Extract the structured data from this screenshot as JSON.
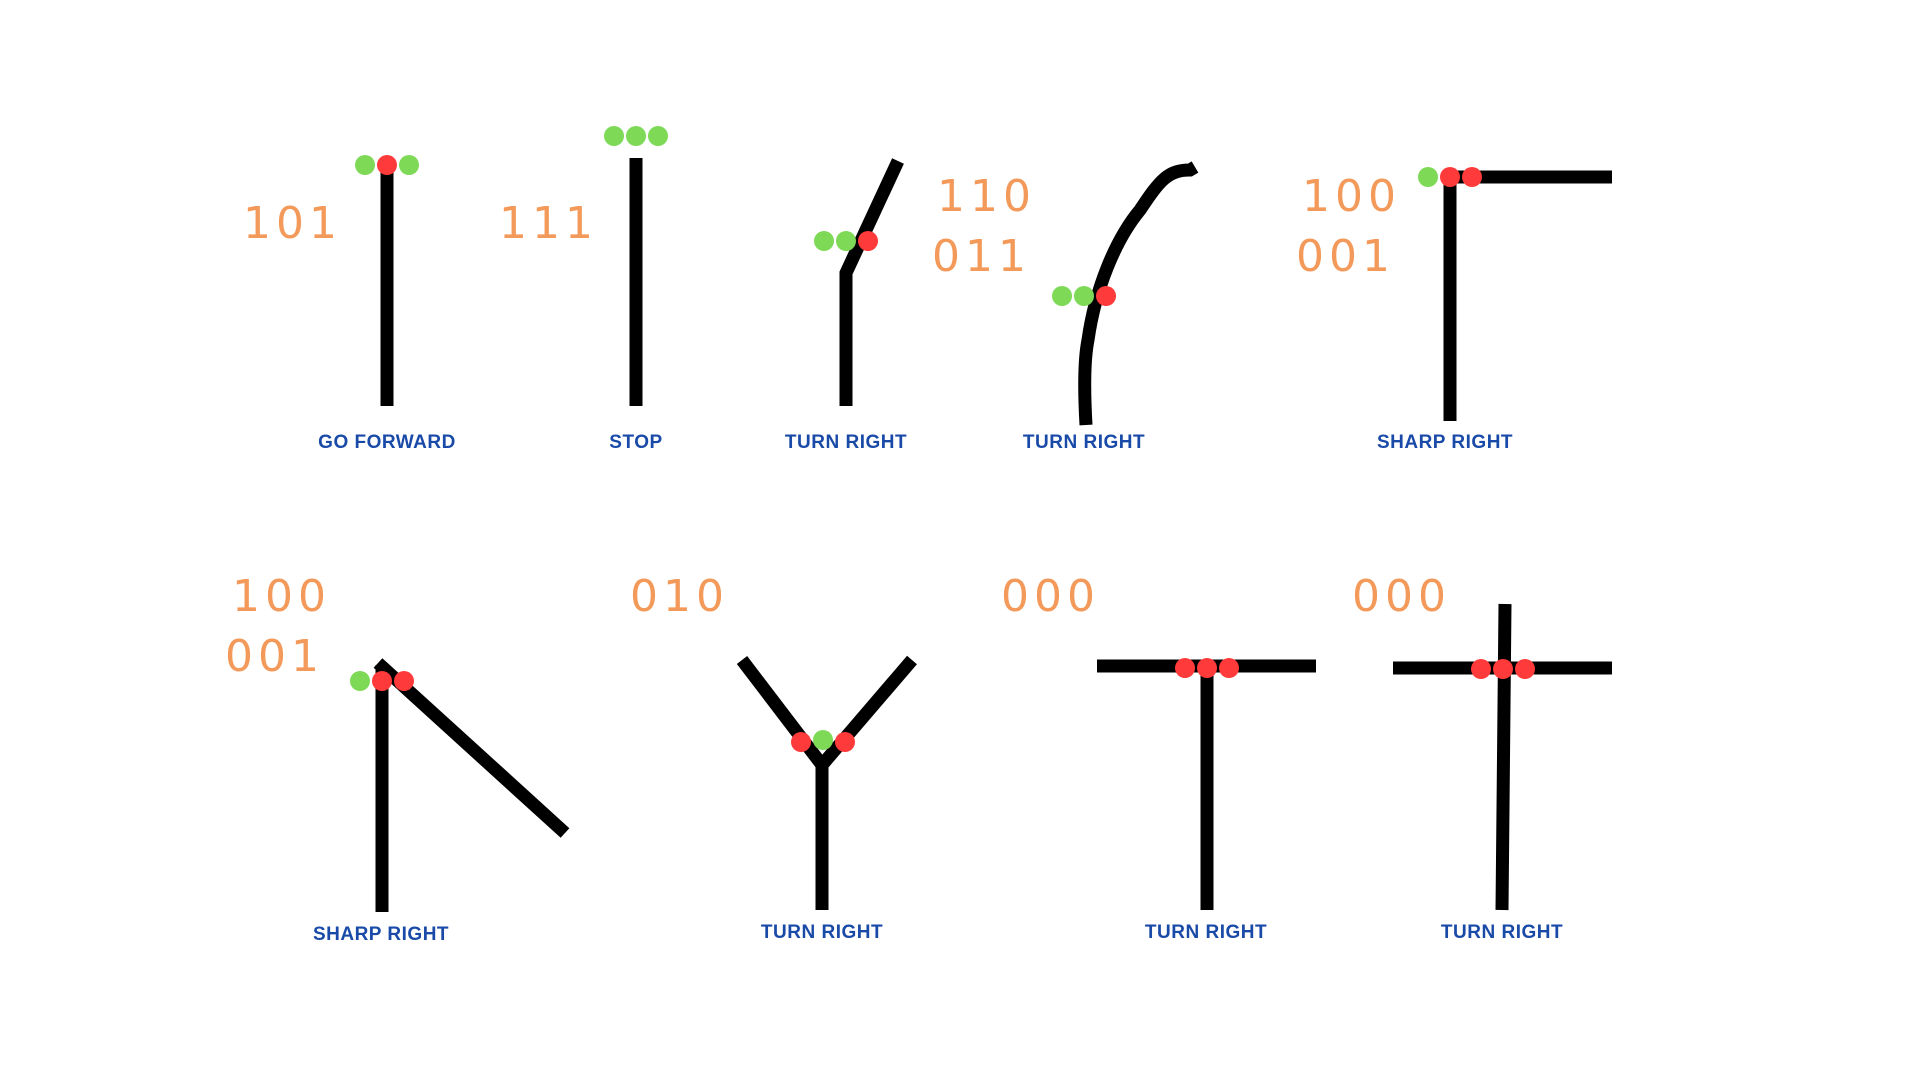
{
  "colors": {
    "background": "#ffffff",
    "track": "#000000",
    "code_text": "#f39a5a",
    "label_text": "#1a4aa8",
    "sensor_off_track": "#7ed957",
    "sensor_on_track": "#ff3a3a"
  },
  "panels": [
    {
      "id": "p1",
      "codes": [
        "101"
      ],
      "label": "GO FORWARD",
      "sensors": [
        "green",
        "red",
        "green"
      ]
    },
    {
      "id": "p2",
      "codes": [
        "111"
      ],
      "label": "STOP",
      "sensors": [
        "green",
        "green",
        "green"
      ]
    },
    {
      "id": "p3",
      "codes": [],
      "label": "TURN RIGHT",
      "sensors": [
        "green",
        "green",
        "red"
      ]
    },
    {
      "id": "p4",
      "codes": [
        "110",
        "011"
      ],
      "label": "TURN RIGHT",
      "sensors": [
        "green",
        "green",
        "red"
      ]
    },
    {
      "id": "p5",
      "codes": [
        "100",
        "001"
      ],
      "label": "SHARP RIGHT",
      "sensors": [
        "green",
        "red",
        "red"
      ]
    },
    {
      "id": "p6",
      "codes": [
        "100",
        "001"
      ],
      "label": "SHARP RIGHT",
      "sensors": [
        "green",
        "red",
        "red"
      ]
    },
    {
      "id": "p7",
      "codes": [
        "010"
      ],
      "label": "TURN RIGHT",
      "sensors": [
        "red",
        "green",
        "red"
      ]
    },
    {
      "id": "p8",
      "codes": [
        "000"
      ],
      "label": "TURN RIGHT",
      "sensors": [
        "red",
        "red",
        "red"
      ]
    },
    {
      "id": "p9",
      "codes": [
        "000"
      ],
      "label": "TURN RIGHT",
      "sensors": [
        "red",
        "red",
        "red"
      ]
    }
  ]
}
